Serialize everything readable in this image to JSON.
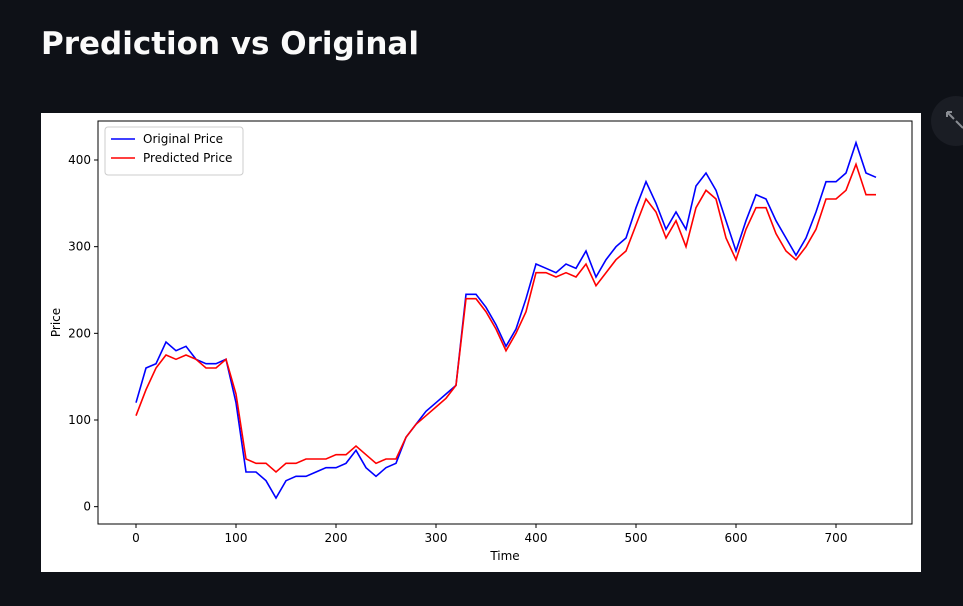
{
  "page_title": "Prediction vs Original",
  "chart_data": {
    "type": "line",
    "x_label": "Time",
    "y_label": "Price",
    "x": [
      0,
      10,
      20,
      30,
      40,
      50,
      60,
      70,
      80,
      90,
      100,
      110,
      120,
      130,
      140,
      150,
      160,
      170,
      180,
      190,
      200,
      210,
      220,
      230,
      240,
      250,
      260,
      270,
      280,
      290,
      300,
      310,
      320,
      330,
      340,
      350,
      360,
      370,
      380,
      390,
      400,
      410,
      420,
      430,
      440,
      450,
      460,
      470,
      480,
      490,
      500,
      510,
      520,
      530,
      540,
      550,
      560,
      570,
      580,
      590,
      600,
      610,
      620,
      630,
      640,
      650,
      660,
      670,
      680,
      690,
      700,
      710,
      720,
      730,
      740
    ],
    "series": [
      {
        "name": "Original Price",
        "color": "#0000ff",
        "values": [
          120,
          160,
          165,
          190,
          180,
          185,
          170,
          165,
          165,
          170,
          120,
          40,
          40,
          30,
          10,
          30,
          35,
          35,
          40,
          45,
          45,
          50,
          65,
          45,
          35,
          45,
          50,
          80,
          95,
          110,
          120,
          130,
          140,
          245,
          245,
          230,
          210,
          185,
          205,
          240,
          280,
          275,
          270,
          280,
          275,
          295,
          265,
          285,
          300,
          310,
          345,
          375,
          350,
          320,
          340,
          320,
          370,
          385,
          365,
          330,
          295,
          330,
          360,
          355,
          330,
          310,
          290,
          310,
          340,
          375,
          375,
          385,
          420,
          385,
          380
        ]
      },
      {
        "name": "Predicted Price",
        "color": "#ff0000",
        "values": [
          105,
          135,
          160,
          175,
          170,
          175,
          170,
          160,
          160,
          170,
          130,
          55,
          50,
          50,
          40,
          50,
          50,
          55,
          55,
          55,
          60,
          60,
          70,
          60,
          50,
          55,
          55,
          80,
          95,
          105,
          115,
          125,
          140,
          240,
          240,
          225,
          205,
          180,
          200,
          225,
          270,
          270,
          265,
          270,
          265,
          280,
          255,
          270,
          285,
          295,
          325,
          355,
          340,
          310,
          330,
          300,
          345,
          365,
          355,
          310,
          285,
          320,
          345,
          345,
          315,
          295,
          285,
          300,
          320,
          355,
          355,
          365,
          395,
          360,
          360
        ]
      }
    ],
    "xlim": [
      -38,
      776
    ],
    "ylim": [
      -20,
      445
    ],
    "xticks": [
      0,
      100,
      200,
      300,
      400,
      500,
      600,
      700
    ],
    "yticks": [
      0,
      100,
      200,
      300,
      400
    ],
    "grid": false,
    "legend": "upper left"
  }
}
